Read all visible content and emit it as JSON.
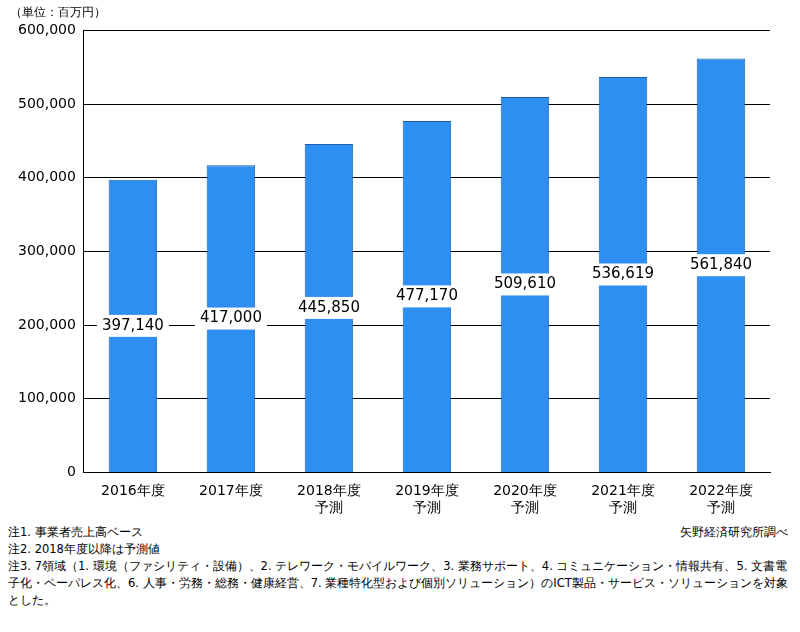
{
  "chart_data": {
    "type": "bar",
    "ylabel": "（単位：百万円）",
    "categories": [
      "2016年度",
      "2017年度",
      "2018年度\n予測",
      "2019年度\n予測",
      "2020年度\n予測",
      "2021年度\n予測",
      "2022年度\n予測"
    ],
    "values": [
      397140,
      417000,
      445850,
      477170,
      509610,
      536619,
      561840
    ],
    "value_labels": [
      "397,140",
      "417,000",
      "445,850",
      "477,170",
      "509,610",
      "536,619",
      "561,840"
    ],
    "data_labels": true,
    "color": "#2e8ff2",
    "ylim": [
      0,
      600000
    ],
    "yticks": [
      0,
      {
        "value": 100000,
        "label": "100,000"
      },
      {
        "value": 200000,
        "label": "200,000"
      },
      {
        "value": 300000,
        "label": "300,000"
      },
      {
        "value": 400000,
        "label": "400,000"
      },
      {
        "value": 500000,
        "label": "500,000"
      },
      {
        "value": 600000,
        "label": "600,000"
      }
    ],
    "grid": true
  },
  "notes": [
    "注1.  事業者売上高ベース",
    "注2.  2018年度以降は予測値",
    "注3.  7領域（1. 環境（ファシリティ・設備）、2. テレワーク・モバイルワーク、3. 業務サポート、4. コミュニケーション・情報共有、5. 文書電子化・ペーパレス化、6. 人事・労務・総務・健康経営、7. 業種特化型および個別ソリューション）のICT製品・サービス・ソリューションを対象とした。"
  ],
  "source": "矢野経済研究所調べ"
}
